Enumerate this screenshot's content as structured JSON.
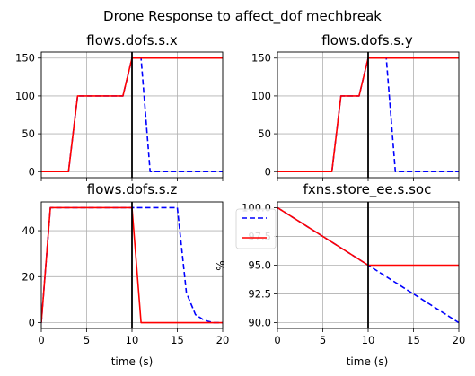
{
  "figure_title": "Drone Response to affect_dof mechbreak",
  "colors": {
    "nominal": "#0000ff",
    "faulty": "#ff0000",
    "fault_time": "#000000",
    "grid": "#b0b0b0"
  },
  "chart_data": [
    {
      "type": "line",
      "title": "flows.dofs.s.x",
      "xlabel": "",
      "ylabel": "",
      "xlim": [
        0,
        20
      ],
      "ylim": [
        -8,
        158
      ],
      "xticks": [
        0,
        5,
        10,
        15,
        20
      ],
      "xtick_labels": false,
      "yticks": [
        0,
        50,
        100,
        150
      ],
      "grid": true,
      "fault_time": 10,
      "series": [
        {
          "style": "dashed",
          "color": "#0000ff",
          "x": [
            0,
            3,
            4,
            9,
            10,
            11,
            12,
            20
          ],
          "y": [
            0,
            0,
            100,
            100,
            150,
            150,
            0,
            0
          ]
        },
        {
          "style": "solid",
          "color": "#ff0000",
          "x": [
            0,
            3,
            4,
            9,
            10,
            20
          ],
          "y": [
            0,
            0,
            100,
            100,
            150,
            150
          ]
        }
      ]
    },
    {
      "type": "line",
      "title": "flows.dofs.s.y",
      "xlabel": "",
      "ylabel": "",
      "xlim": [
        0,
        20
      ],
      "ylim": [
        -8,
        158
      ],
      "xticks": [
        0,
        5,
        10,
        15,
        20
      ],
      "xtick_labels": false,
      "yticks": [
        0,
        50,
        100,
        150
      ],
      "grid": true,
      "fault_time": 10,
      "series": [
        {
          "style": "dashed",
          "color": "#0000ff",
          "x": [
            0,
            6,
            7,
            9,
            10,
            12,
            13,
            20
          ],
          "y": [
            0,
            0,
            100,
            100,
            150,
            150,
            0,
            0
          ]
        },
        {
          "style": "solid",
          "color": "#ff0000",
          "x": [
            0,
            6,
            7,
            9,
            10,
            20
          ],
          "y": [
            0,
            0,
            100,
            100,
            150,
            150
          ]
        }
      ]
    },
    {
      "type": "line",
      "title": "flows.dofs.s.z",
      "xlabel": "time (s)",
      "ylabel": "",
      "xlim": [
        0,
        20
      ],
      "ylim": [
        -2.5,
        52.5
      ],
      "xticks": [
        0,
        5,
        10,
        15,
        20
      ],
      "xtick_labels": true,
      "yticks": [
        0,
        20,
        40
      ],
      "grid": true,
      "fault_time": 10,
      "series": [
        {
          "style": "dashed",
          "color": "#0000ff",
          "x": [
            0,
            1,
            10,
            15,
            16,
            17,
            18,
            19,
            20
          ],
          "y": [
            0,
            50,
            50,
            50,
            13,
            3.5,
            1,
            0,
            0
          ]
        },
        {
          "style": "solid",
          "color": "#ff0000",
          "x": [
            0,
            1,
            10,
            11,
            20
          ],
          "y": [
            0,
            50,
            50,
            0,
            0
          ]
        }
      ]
    },
    {
      "type": "line",
      "title": "fxns.store_ee.s.soc",
      "xlabel": "time (s)",
      "ylabel": "%",
      "xlim": [
        0,
        20
      ],
      "ylim": [
        89.5,
        100.5
      ],
      "xticks": [
        0,
        5,
        10,
        15,
        20
      ],
      "xtick_labels": true,
      "yticks": [
        90.0,
        92.5,
        95.0,
        97.5,
        100.0
      ],
      "grid": true,
      "fault_time": 10,
      "legend": "upper-left",
      "series": [
        {
          "style": "dashed",
          "color": "#0000ff",
          "x": [
            0,
            20
          ],
          "y": [
            100,
            90
          ]
        },
        {
          "style": "solid",
          "color": "#ff0000",
          "x": [
            0,
            10,
            20
          ],
          "y": [
            100,
            95,
            95
          ]
        }
      ]
    }
  ]
}
